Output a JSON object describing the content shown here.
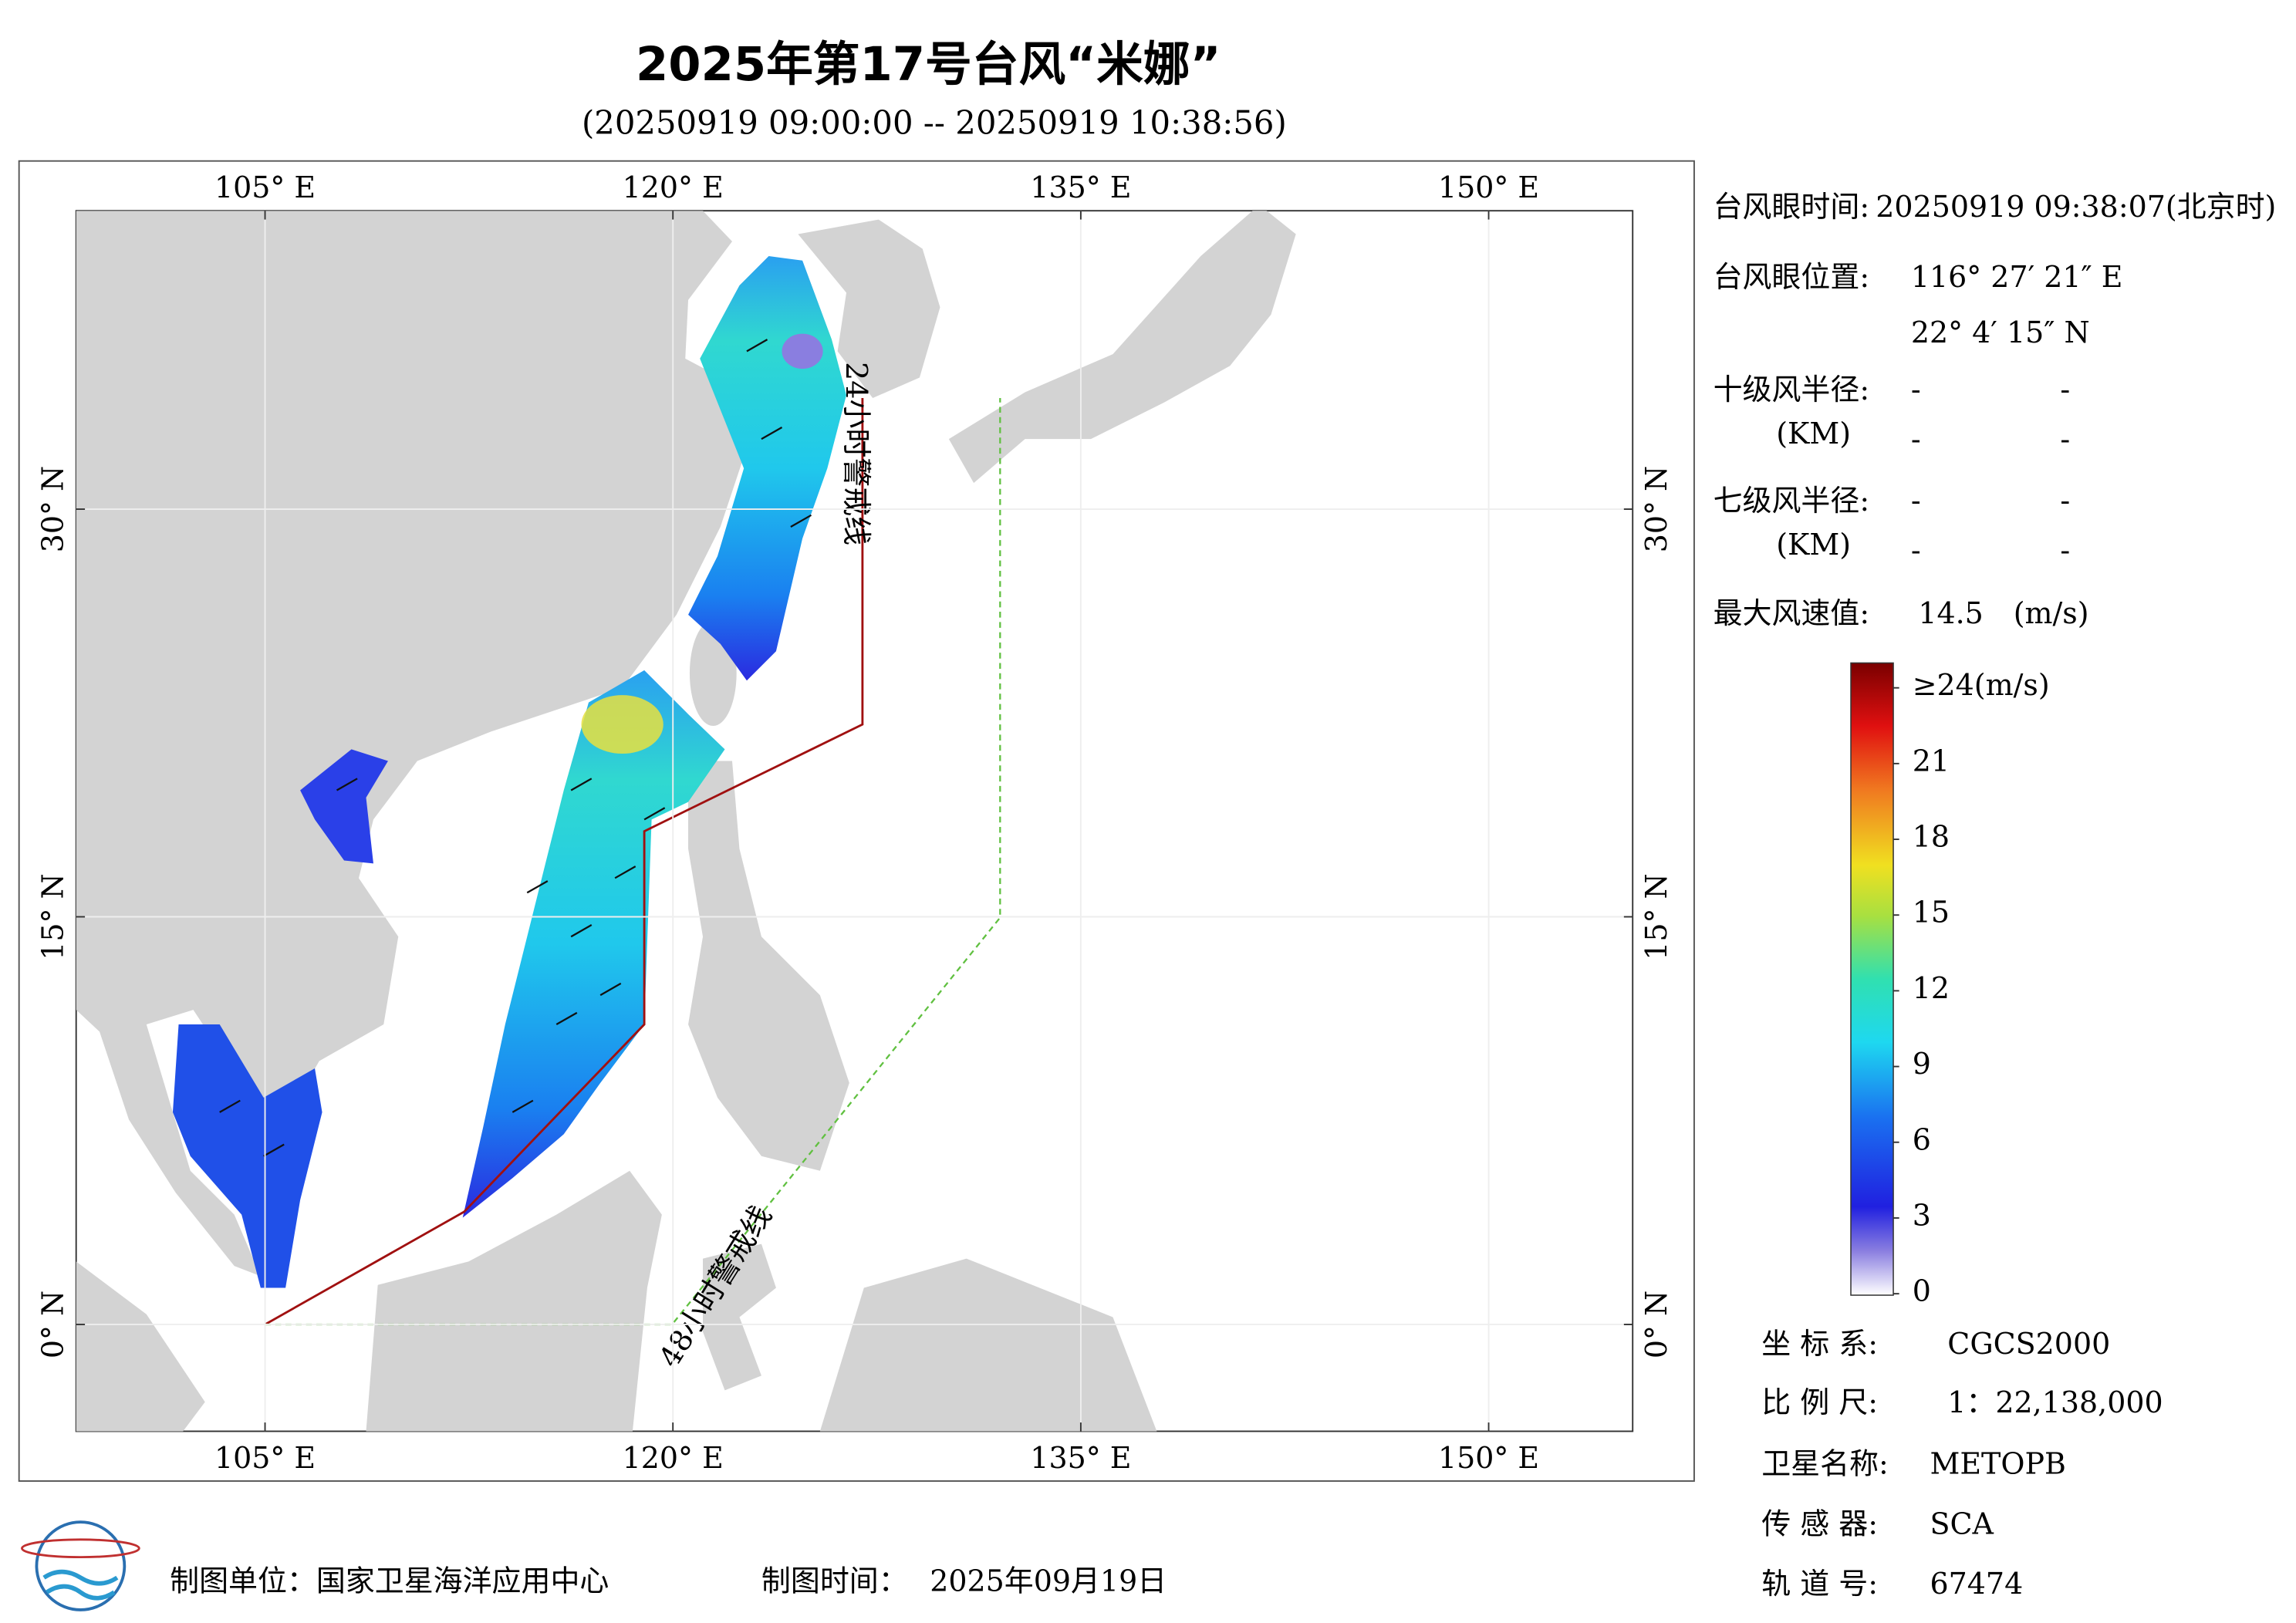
{
  "title": "2025年第17号台风“米娜”",
  "subtitle": "(20250919 09:00:00 -- 20250919 10:38:56)",
  "map": {
    "lon_ticks": [
      {
        "value": 105,
        "label": "105° E"
      },
      {
        "value": 120,
        "label": "120° E"
      },
      {
        "value": 135,
        "label": "135° E"
      },
      {
        "value": 150,
        "label": "150° E"
      }
    ],
    "lat_ticks": [
      {
        "value": 30,
        "label": "30° N"
      },
      {
        "value": 15,
        "label": "15° N"
      },
      {
        "value": 0,
        "label": "0° N"
      }
    ],
    "warning_24h": "24小时警戒线",
    "warning_48h": "48小时警戒线"
  },
  "info": {
    "eye_time_label": "台风眼时间:",
    "eye_time": "20250919 09:38:07(北京时)",
    "eye_pos_label": "台风眼位置:",
    "eye_lon": "116° 27′ 21″ E",
    "eye_lat": "22° 4′ 15″ N",
    "r10_label": "十级风半径:",
    "r10_unit": "(KM)",
    "r10_values": [
      "-",
      "-",
      "-",
      "-"
    ],
    "r7_label": "七级风半径:",
    "r7_unit": "(KM)",
    "r7_values": [
      "-",
      "-",
      "-",
      "-"
    ],
    "max_wind_label": "最大风速值:",
    "max_wind": 14.5,
    "max_wind_unit": "(m/s)"
  },
  "colorbar": {
    "ticks": [
      {
        "value": 24,
        "label": "≥24(m/s)"
      },
      21,
      18,
      15,
      12,
      9,
      6,
      3,
      0
    ]
  },
  "meta": {
    "crs_label": "坐 标 系:",
    "crs": "CGCS2000",
    "scale_label": "比 例 尺:",
    "scale": "1：22,138,000",
    "satellite_label": "卫星名称:",
    "satellite": "METOPB",
    "sensor_label": "传 感 器:",
    "sensor": "SCA",
    "orbit_label": "轨 道 号:",
    "orbit": "67474"
  },
  "footer": {
    "unit": "制图单位：国家卫星海洋应用中心",
    "time_label": "制图时间：",
    "time": "2025年09月19日"
  }
}
